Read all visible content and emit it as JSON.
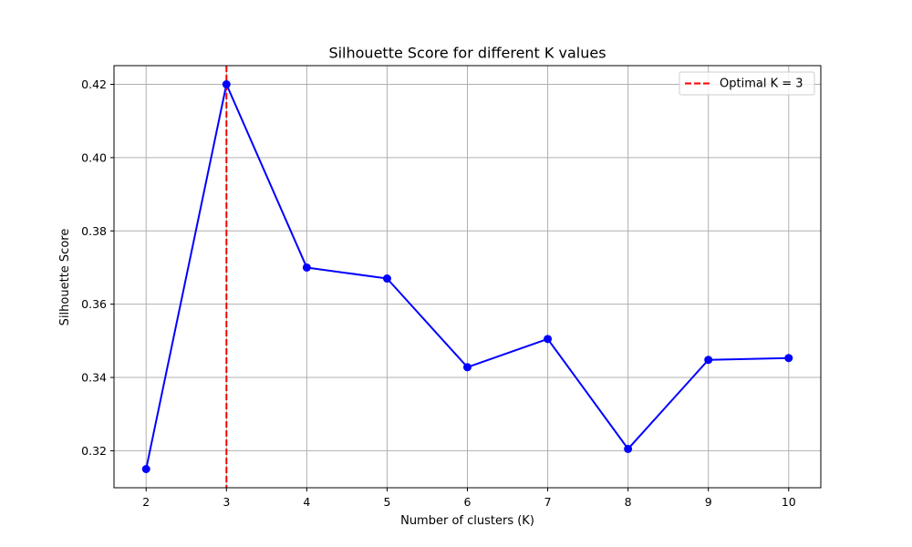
{
  "chart_data": {
    "type": "line",
    "title": "Silhouette Score for different K values",
    "xlabel": "Number of clusters (K)",
    "ylabel": "Silhouette Score",
    "x": [
      2,
      3,
      4,
      5,
      6,
      7,
      8,
      9,
      10
    ],
    "xlim": [
      1.6,
      10.4
    ],
    "ylim": [
      0.3099,
      0.4251
    ],
    "x_ticks": [
      "2",
      "3",
      "4",
      "5",
      "6",
      "7",
      "8",
      "9",
      "10"
    ],
    "y_ticks": [
      0.32,
      0.34,
      0.36,
      0.38,
      0.4,
      0.42
    ],
    "y_tick_labels": [
      "0.32",
      "0.34",
      "0.36",
      "0.38",
      "0.40",
      "0.42"
    ],
    "grid": true,
    "legend_position": "top-right",
    "series": [
      {
        "values": [
          0.315,
          0.42,
          0.37,
          0.367,
          0.3428,
          0.3505,
          0.3205,
          0.3448,
          0.3453
        ],
        "color": "#0000ff",
        "marker": "circle"
      }
    ],
    "reference_lines": [
      {
        "axis": "x",
        "value": 3,
        "label": "Optimal K = 3",
        "color": "#ff0000",
        "style": "dashed"
      }
    ]
  }
}
